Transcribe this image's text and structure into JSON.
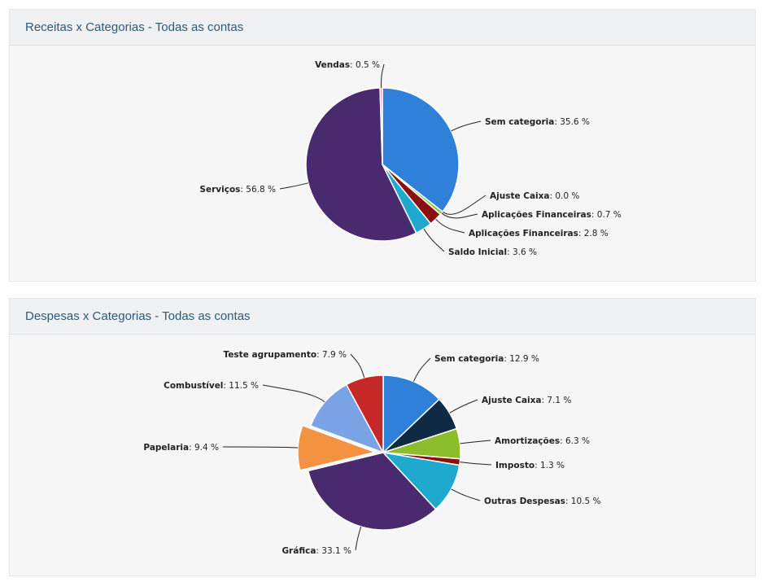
{
  "chart_data": [
    {
      "type": "pie",
      "title": "Receitas x Categorias - Todas as contas",
      "slices": [
        {
          "name": "Sem categoria",
          "value": 35.6,
          "label": "35.6 %",
          "color": "#2f80d8"
        },
        {
          "name": "Ajuste Caixa",
          "value": 0.0,
          "label": "0.0 %",
          "color": "#0e2a45"
        },
        {
          "name": "Aplicações Financeiras",
          "value": 0.7,
          "label": "0.7 %",
          "color": "#8cc63e"
        },
        {
          "name": "Aplicações Financeiras",
          "value": 2.8,
          "label": "2.8 %",
          "color": "#8a1010"
        },
        {
          "name": "Saldo Inicial",
          "value": 3.6,
          "label": "3.6 %",
          "color": "#1fa9cf"
        },
        {
          "name": "Serviços",
          "value": 56.8,
          "label": "56.8 %",
          "color": "#4a2a6e"
        },
        {
          "name": "Vendas",
          "value": 0.5,
          "label": "0.5 %",
          "color": "#f3a19a"
        }
      ]
    },
    {
      "type": "pie",
      "title": "Despesas x Categorias - Todas as contas",
      "slices": [
        {
          "name": "Sem categoria",
          "value": 12.9,
          "label": "12.9 %",
          "color": "#2f80d8"
        },
        {
          "name": "Ajuste Caixa",
          "value": 7.1,
          "label": "7.1 %",
          "color": "#0e2a45"
        },
        {
          "name": "Amortizações",
          "value": 6.3,
          "label": "6.3 %",
          "color": "#8cbd2a"
        },
        {
          "name": "Imposto",
          "value": 1.3,
          "label": "1.3 %",
          "color": "#8a1010"
        },
        {
          "name": "Outras Despesas",
          "value": 10.5,
          "label": "10.5 %",
          "color": "#1fa9cf"
        },
        {
          "name": "Gráfica",
          "value": 33.1,
          "label": "33.1 %",
          "color": "#4a2a6e"
        },
        {
          "name": "Papelaria",
          "value": 9.4,
          "label": "9.4 %",
          "color": "#f39240",
          "exploded": true
        },
        {
          "name": "Combustível",
          "value": 11.5,
          "label": "11.5 %",
          "color": "#7aa3e6"
        },
        {
          "name": "Teste agrupamento",
          "value": 7.9,
          "label": "7.9 %",
          "color": "#c62828"
        }
      ]
    }
  ]
}
